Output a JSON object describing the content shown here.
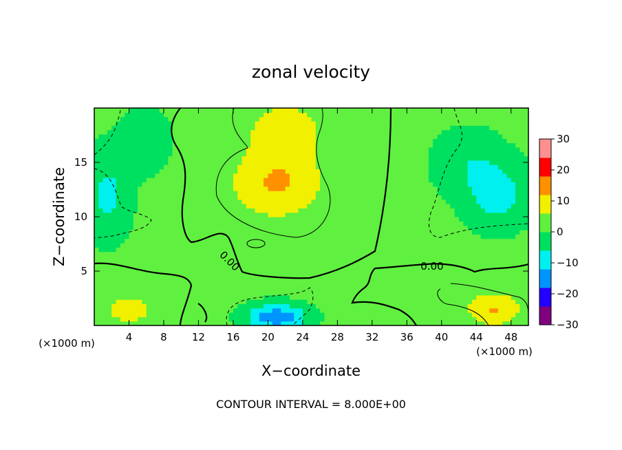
{
  "chart_data": {
    "type": "heatmap",
    "title": "zonal velocity",
    "xlabel": "X−coordinate",
    "ylabel": "Z−coordinate",
    "x_unit_left": "(×1000 m)",
    "x_unit_right": "(×1000 m)",
    "xlim": [
      0,
      50
    ],
    "ylim": [
      0,
      20
    ],
    "x_ticks": [
      4,
      8,
      12,
      16,
      20,
      24,
      28,
      32,
      36,
      40,
      44,
      48
    ],
    "y_ticks": [
      5,
      10,
      15
    ],
    "colorbar": {
      "min": -30,
      "max": 30,
      "ticks": [
        30,
        20,
        10,
        0,
        -10,
        -20,
        -30
      ],
      "tick_labels": [
        "30",
        "20",
        "10",
        "0",
        "−10",
        "−20",
        "−30"
      ],
      "colors": [
        "#800080",
        "#2400ff",
        "#0094ff",
        "#00f0f0",
        "#00e060",
        "#60f040",
        "#f0f000",
        "#ff9000",
        "#ff0000",
        "#ff9090"
      ]
    },
    "contour_label": "0.00",
    "footer": "CONTOUR INTERVAL = 8.000E+00",
    "field_sources": [
      {
        "x": 21,
        "z": 13,
        "value": 11,
        "sx": 5,
        "sz": 3
      },
      {
        "x": 46.5,
        "z": 12,
        "value": -10,
        "sx": 3.5,
        "sz": 3
      },
      {
        "x": 43,
        "z": 15,
        "value": -6,
        "sx": 4,
        "sz": 3
      },
      {
        "x": 1.5,
        "z": 12,
        "value": -9,
        "sx": 2.5,
        "sz": 4
      },
      {
        "x": 6,
        "z": 17,
        "value": -5,
        "sx": 3,
        "sz": 3
      },
      {
        "x": 21,
        "z": 0.8,
        "value": -18,
        "sx": 3.5,
        "sz": 1.2
      },
      {
        "x": 46,
        "z": 1.5,
        "value": 11,
        "sx": 3,
        "sz": 1.5
      },
      {
        "x": 4,
        "z": 1.5,
        "value": 6,
        "sx": 4,
        "sz": 2
      },
      {
        "x": 22,
        "z": 18,
        "value": 7,
        "sx": 5,
        "sz": 3
      },
      {
        "x": 31,
        "z": 3,
        "value": 4,
        "sx": 3,
        "sz": 3
      },
      {
        "x": 12,
        "z": 9,
        "value": 2,
        "sx": 3,
        "sz": 5
      }
    ]
  }
}
